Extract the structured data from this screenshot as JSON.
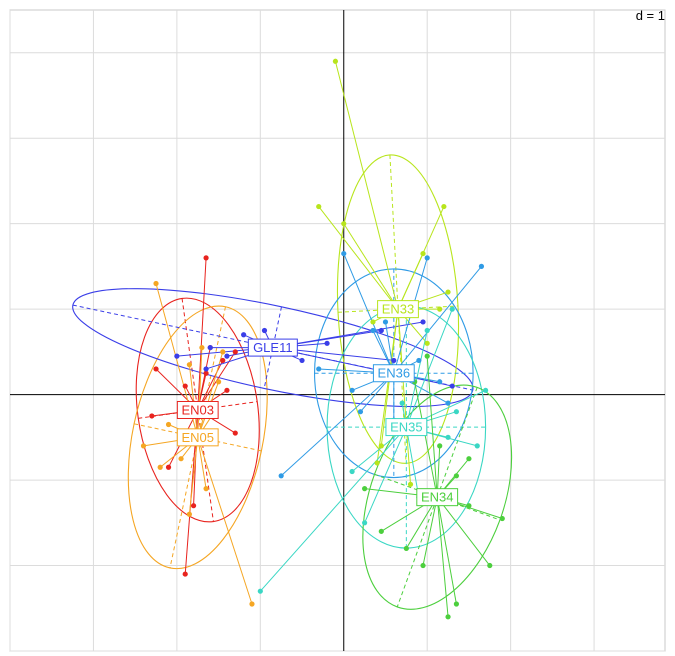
{
  "chart_data": {
    "type": "scatter",
    "scale_label": "d = 1",
    "grid": true,
    "xlim": [
      -4.0,
      3.85
    ],
    "ylim": [
      -3.0,
      4.5
    ],
    "groups": [
      {
        "name": "EN03",
        "color": "#e8231e",
        "center": [
          -1.75,
          -0.18
        ],
        "ellipse": {
          "rx": 0.72,
          "ry": 1.35,
          "angle": -8
        },
        "points": [
          [
            -1.65,
            1.6
          ],
          [
            -1.6,
            0.55
          ],
          [
            -1.65,
            0.25
          ],
          [
            -1.45,
            0.4
          ],
          [
            -1.3,
            0.5
          ],
          [
            -1.4,
            0.05
          ],
          [
            -2.3,
            -0.25
          ],
          [
            -1.9,
            0.1
          ],
          [
            -2.25,
            0.3
          ],
          [
            -1.8,
            -0.1
          ],
          [
            -1.3,
            -0.45
          ],
          [
            -2.1,
            -0.85
          ],
          [
            -1.8,
            -1.3
          ],
          [
            -1.9,
            -2.1
          ],
          [
            -1.55,
            -0.2
          ]
        ]
      },
      {
        "name": "EN05",
        "color": "#f5a623",
        "center": [
          -1.75,
          -0.5
        ],
        "ellipse": {
          "rx": 0.78,
          "ry": 1.6,
          "angle": 12
        },
        "points": [
          [
            -2.25,
            1.3
          ],
          [
            -1.85,
            0.35
          ],
          [
            -1.7,
            0.55
          ],
          [
            -1.55,
            -0.2
          ],
          [
            -1.5,
            0.15
          ],
          [
            -2.4,
            -0.6
          ],
          [
            -2.2,
            -0.85
          ],
          [
            -1.95,
            -0.75
          ],
          [
            -1.65,
            -1.1
          ],
          [
            -1.85,
            -1.4
          ],
          [
            -1.1,
            -2.45
          ],
          [
            -2.1,
            -0.35
          ],
          [
            -1.45,
            0.5
          ]
        ]
      },
      {
        "name": "GLE11",
        "color": "#3a3ee8",
        "center": [
          -0.85,
          0.55
        ],
        "ellipse": {
          "rx": 2.45,
          "ry": 0.5,
          "angle": 12
        },
        "points": [
          [
            -0.95,
            0.75
          ],
          [
            -1.6,
            0.55
          ],
          [
            -2.0,
            0.45
          ],
          [
            -1.65,
            0.3
          ],
          [
            -0.5,
            0.4
          ],
          [
            -0.85,
            0.55
          ],
          [
            0.45,
            0.75
          ],
          [
            0.6,
            0.4
          ],
          [
            0.95,
            0.85
          ],
          [
            1.3,
            0.1
          ],
          [
            -1.4,
            0.45
          ],
          [
            -0.2,
            0.6
          ],
          [
            -1.2,
            0.7
          ]
        ]
      },
      {
        "name": "EN33",
        "color": "#b8e51c",
        "center": [
          0.65,
          1.0
        ],
        "ellipse": {
          "rx": 0.72,
          "ry": 1.85,
          "angle": -3
        },
        "points": [
          [
            -0.1,
            3.9
          ],
          [
            -0.3,
            2.2
          ],
          [
            0.0,
            2.0
          ],
          [
            1.2,
            2.2
          ],
          [
            0.95,
            1.65
          ],
          [
            1.25,
            1.2
          ],
          [
            1.15,
            1.0
          ],
          [
            0.35,
            0.85
          ],
          [
            1.0,
            0.6
          ],
          [
            0.7,
            0.3
          ],
          [
            0.45,
            -0.6
          ],
          [
            0.8,
            -1.05
          ],
          [
            0.4,
            -0.8
          ]
        ]
      },
      {
        "name": "EN36",
        "color": "#2f9be5",
        "center": [
          0.6,
          0.25
        ],
        "ellipse": {
          "rx": 0.95,
          "ry": 1.25,
          "angle": 0
        },
        "points": [
          [
            0.0,
            1.65
          ],
          [
            1.0,
            1.6
          ],
          [
            0.35,
            0.75
          ],
          [
            0.5,
            0.85
          ],
          [
            -0.3,
            0.3
          ],
          [
            0.1,
            0.05
          ],
          [
            0.2,
            -0.2
          ],
          [
            1.15,
            0.15
          ],
          [
            1.65,
            1.5
          ],
          [
            0.9,
            0.4
          ],
          [
            -0.75,
            -0.95
          ],
          [
            0.6,
            -0.3
          ],
          [
            1.25,
            -0.1
          ]
        ]
      },
      {
        "name": "EN35",
        "color": "#3ad7c4",
        "center": [
          0.75,
          -0.38
        ],
        "ellipse": {
          "rx": 0.95,
          "ry": 1.45,
          "angle": 0
        },
        "points": [
          [
            1.3,
            1.0
          ],
          [
            1.0,
            0.75
          ],
          [
            1.7,
            0.05
          ],
          [
            1.25,
            -0.5
          ],
          [
            0.9,
            -1.2
          ],
          [
            0.25,
            -1.5
          ],
          [
            -1.0,
            -2.3
          ],
          [
            1.35,
            -0.2
          ],
          [
            0.1,
            -0.9
          ],
          [
            0.7,
            -0.1
          ],
          [
            1.6,
            -0.6
          ]
        ]
      },
      {
        "name": "EN34",
        "color": "#4ccf3d",
        "center": [
          1.12,
          -1.2
        ],
        "ellipse": {
          "rx": 0.8,
          "ry": 1.4,
          "angle": 20
        },
        "points": [
          [
            1.0,
            0.45
          ],
          [
            0.85,
            0.15
          ],
          [
            1.15,
            -0.6
          ],
          [
            1.35,
            -0.95
          ],
          [
            1.9,
            -1.45
          ],
          [
            1.5,
            -1.3
          ],
          [
            0.45,
            -1.6
          ],
          [
            0.25,
            -1.1
          ],
          [
            0.75,
            -1.8
          ],
          [
            0.95,
            -2.0
          ],
          [
            1.25,
            -2.6
          ],
          [
            1.35,
            -2.45
          ],
          [
            1.75,
            -2.0
          ],
          [
            1.5,
            -0.75
          ]
        ]
      }
    ]
  }
}
